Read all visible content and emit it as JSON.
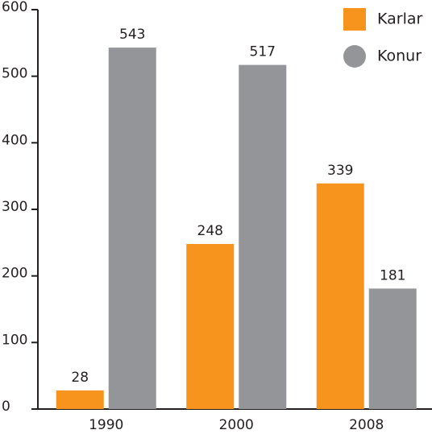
{
  "chart_data": {
    "type": "bar",
    "categories": [
      "1990",
      "2000",
      "2008"
    ],
    "series": [
      {
        "name": "Karlar",
        "color": "#f7941d",
        "values": [
          28,
          248,
          339
        ]
      },
      {
        "name": "Konur",
        "color": "#939598",
        "values": [
          543,
          517,
          181
        ]
      }
    ],
    "ylim": [
      0,
      600
    ],
    "yticks": [
      0,
      100,
      200,
      300,
      400,
      500,
      600
    ],
    "grid": false
  }
}
